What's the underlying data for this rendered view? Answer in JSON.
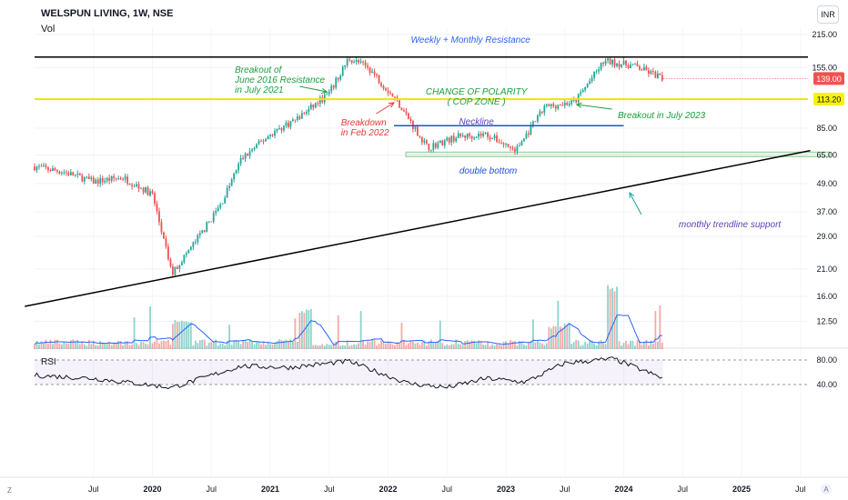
{
  "header": {
    "symbol": "WELSPUN LIVING, 1W, NSE",
    "volume_label": "Vol",
    "currency_button": "INR",
    "rsi_label": "RSI",
    "bottom_left": "Z",
    "bottom_right": "A"
  },
  "colors": {
    "up": "#26a69a",
    "down": "#ef5350",
    "resistance": "#000000",
    "polarity_line": "#f1e400",
    "neckline": "#1e4fd6",
    "trendline": "#000000",
    "volume_ma": "#2962ff",
    "price_badge": "#ef5350",
    "level_badge": "#f7f20a"
  },
  "chart_data": {
    "type": "candlestick",
    "y_scale": "log",
    "price_axis_ticks": [
      "215.00",
      "155.00",
      "113.20",
      "85.00",
      "65.00",
      "49.00",
      "37.00",
      "29.00",
      "21.00",
      "16.00",
      "12.50"
    ],
    "rsi_axis_ticks": [
      "80.00",
      "40.00"
    ],
    "x_axis_ticks": [
      "Jul",
      "2020",
      "Jul",
      "2021",
      "Jul",
      "2022",
      "Jul",
      "2023",
      "Jul",
      "2024",
      "Jul",
      "2025",
      "Jul"
    ],
    "last_price": "139.00",
    "polarity_level": "113.20",
    "resistance_level": 172,
    "neckline_level": 87,
    "double_bottom_zone": [
      64,
      67
    ],
    "trendline_points": [
      {
        "date": "2018-12",
        "price": 14.5
      },
      {
        "date": "2025-08",
        "price": 68
      }
    ],
    "price_path": [
      {
        "date": "2019-01",
        "price": 58
      },
      {
        "date": "2019-04",
        "price": 55
      },
      {
        "date": "2019-07",
        "price": 50
      },
      {
        "date": "2019-10",
        "price": 52
      },
      {
        "date": "2020-01",
        "price": 44
      },
      {
        "date": "2020-03",
        "price": 20
      },
      {
        "date": "2020-04",
        "price": 23
      },
      {
        "date": "2020-06",
        "price": 30
      },
      {
        "date": "2020-08",
        "price": 40
      },
      {
        "date": "2020-10",
        "price": 62
      },
      {
        "date": "2021-01",
        "price": 80
      },
      {
        "date": "2021-04",
        "price": 95
      },
      {
        "date": "2021-07",
        "price": 120
      },
      {
        "date": "2021-09",
        "price": 170
      },
      {
        "date": "2021-11",
        "price": 155
      },
      {
        "date": "2022-02",
        "price": 110
      },
      {
        "date": "2022-05",
        "price": 70
      },
      {
        "date": "2022-08",
        "price": 78
      },
      {
        "date": "2022-11",
        "price": 80
      },
      {
        "date": "2023-02",
        "price": 68
      },
      {
        "date": "2023-05",
        "price": 105
      },
      {
        "date": "2023-08",
        "price": 110
      },
      {
        "date": "2023-11",
        "price": 165
      },
      {
        "date": "2024-02",
        "price": 158
      },
      {
        "date": "2024-05",
        "price": 139
      }
    ],
    "rsi_path": [
      {
        "date": "2019-01",
        "value": 55
      },
      {
        "date": "2019-07",
        "value": 50
      },
      {
        "date": "2020-03",
        "value": 35
      },
      {
        "date": "2020-10",
        "value": 70
      },
      {
        "date": "2021-03",
        "value": 68
      },
      {
        "date": "2021-09",
        "value": 78
      },
      {
        "date": "2022-03",
        "value": 42
      },
      {
        "date": "2022-07",
        "value": 35
      },
      {
        "date": "2022-11",
        "value": 50
      },
      {
        "date": "2023-03",
        "value": 44
      },
      {
        "date": "2023-07",
        "value": 75
      },
      {
        "date": "2023-12",
        "value": 82
      },
      {
        "date": "2024-05",
        "value": 50
      }
    ],
    "annotations": [
      {
        "id": "weekly-monthly-resistance",
        "text": "Weekly + Monthly Resistance",
        "color": "#2962ff"
      },
      {
        "id": "breakout-2021",
        "lines": [
          "Breakout of",
          "June 2016 Resistance",
          "in July 2021"
        ],
        "color": "#1b9e3e"
      },
      {
        "id": "change-of-polarity",
        "lines": [
          "CHANGE OF POLARITY",
          "( COP ZONE )"
        ],
        "color": "#1b9e3e"
      },
      {
        "id": "breakdown-2022",
        "lines": [
          "Breakdown",
          "in Feb 2022"
        ],
        "color": "#e53935"
      },
      {
        "id": "neckline",
        "text": "Neckline",
        "color": "#5c3fbf"
      },
      {
        "id": "breakout-2023",
        "text": "Breakout in July 2023",
        "color": "#1b9e3e"
      },
      {
        "id": "double-bottom",
        "text": "double bottom",
        "color": "#1e4fd6"
      },
      {
        "id": "trendline-support",
        "text": "monthly trendline support",
        "color": "#5c3fbf"
      }
    ]
  }
}
